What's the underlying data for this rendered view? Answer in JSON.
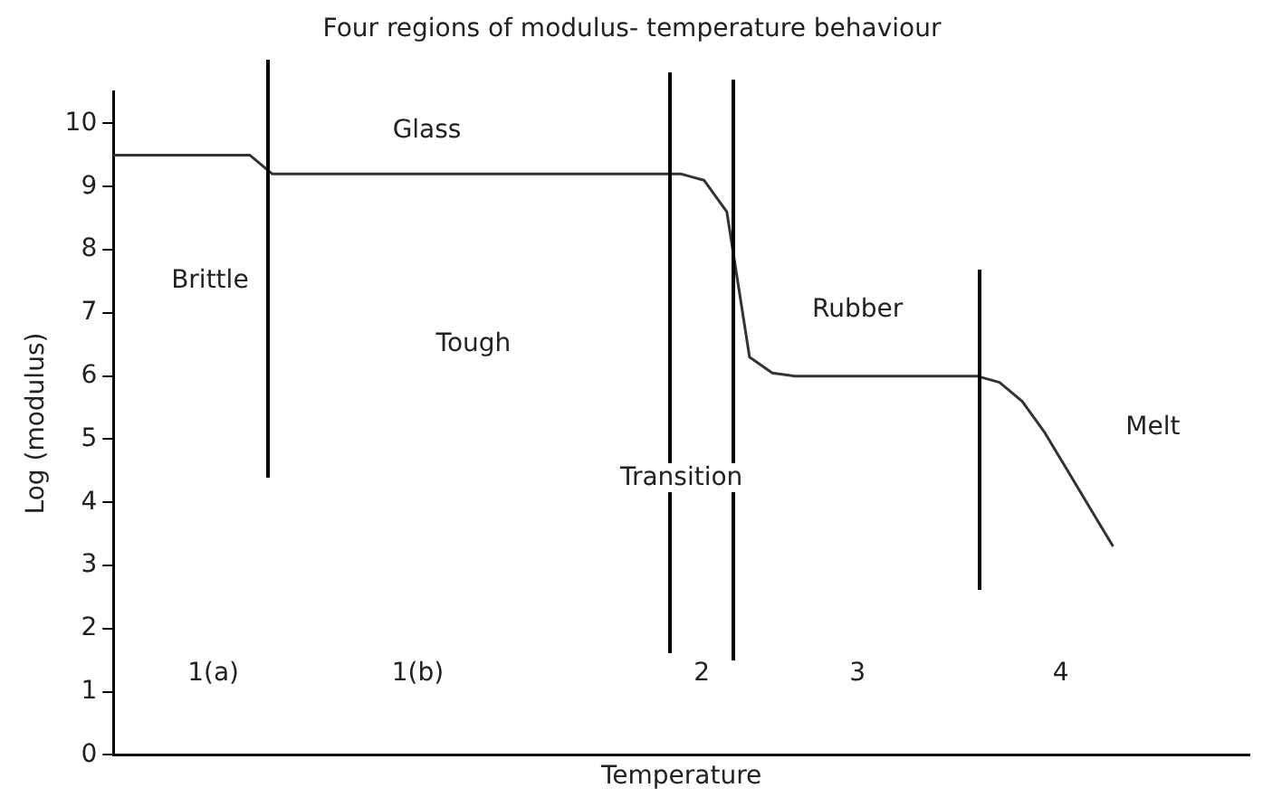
{
  "chart_data": {
    "type": "line",
    "title": "Four regions of modulus- temperature behaviour",
    "xlabel": "Temperature",
    "ylabel": "Log (modulus)",
    "categories": [
      null,
      null,
      null,
      null,
      null,
      null,
      null,
      null,
      null,
      null,
      null,
      null,
      null,
      null,
      null,
      null,
      null,
      null,
      null,
      null,
      null,
      null,
      null,
      null,
      null,
      null,
      null,
      null,
      null,
      null,
      null,
      null,
      null,
      null,
      null,
      null,
      null,
      null,
      null,
      null,
      null,
      null,
      null,
      null,
      null,
      null,
      null,
      null,
      null,
      null,
      null
    ],
    "series": [
      {
        "color": "#333333",
        "values": [
          9.5,
          9.5,
          9.5,
          9.5,
          9.5,
          9.5,
          9.5,
          9.2,
          9.2,
          9.2,
          9.2,
          9.2,
          9.2,
          9.2,
          9.2,
          9.2,
          9.2,
          9.2,
          9.2,
          9.2,
          9.2,
          9.2,
          9.2,
          9.2,
          9.2,
          9.2,
          9.1,
          8.6,
          6.3,
          6.05,
          6.0,
          6.0,
          6.0,
          6.0,
          6.0,
          6.0,
          6.0,
          6.0,
          6.0,
          5.9,
          5.6,
          5.1,
          4.5,
          3.9,
          3.3,
          null,
          null,
          null,
          null,
          null,
          null
        ]
      }
    ],
    "ylim": [
      0,
      10.5
    ],
    "yticks": [
      0,
      1,
      2,
      3,
      4,
      5,
      6,
      7,
      8,
      9,
      10
    ],
    "tick_labels": "y",
    "grid": false,
    "legend": false,
    "marker": "none",
    "line_style": "solid",
    "annotations": [
      "Glass",
      "Brittle",
      "Tough",
      "Rubber",
      "Transition",
      "Melt",
      "1(a)",
      "1(b)",
      "2",
      "3",
      "4"
    ]
  }
}
